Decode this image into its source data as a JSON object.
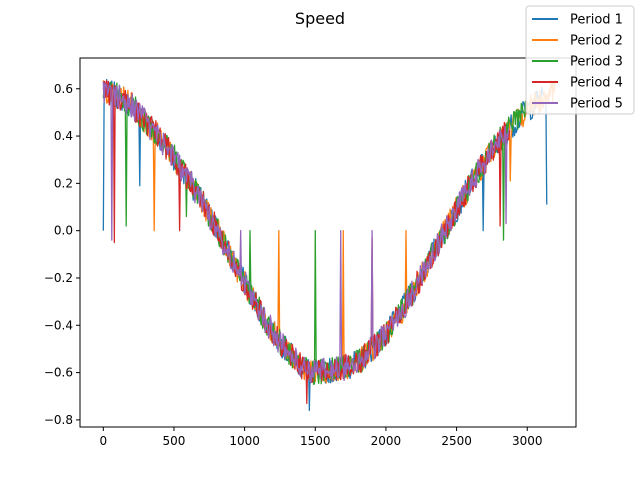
{
  "chart_data": {
    "type": "line",
    "title": "Speed",
    "xlabel": "",
    "ylabel": "",
    "xlim": [
      -165,
      3345
    ],
    "ylim": [
      -0.83,
      0.73
    ],
    "x_ticks": [
      0,
      500,
      1000,
      1500,
      2000,
      2500,
      3000
    ],
    "y_ticks": [
      -0.8,
      -0.6,
      -0.4,
      -0.2,
      0.0,
      0.2,
      0.4,
      0.6
    ],
    "x_tick_labels": [
      "0",
      "500",
      "1000",
      "1500",
      "2000",
      "2500",
      "3000"
    ],
    "y_tick_labels": [
      "−0.8",
      "−0.6",
      "−0.4",
      "−0.2",
      "0.0",
      "0.2",
      "0.4",
      "0.6"
    ],
    "grid": false,
    "legend_position": "top-right",
    "curve": {
      "x": [
        0,
        100,
        200,
        300,
        400,
        500,
        600,
        700,
        800,
        900,
        1000,
        1100,
        1200,
        1300,
        1400,
        1500,
        1600,
        1700,
        1800,
        1900,
        2000,
        2100,
        2200,
        2300,
        2400,
        2500,
        2600,
        2700,
        2800,
        2900,
        3000,
        3100,
        3200
      ],
      "y": [
        0.59,
        0.57,
        0.53,
        0.46,
        0.39,
        0.31,
        0.22,
        0.12,
        0.01,
        -0.11,
        -0.22,
        -0.33,
        -0.43,
        -0.51,
        -0.57,
        -0.6,
        -0.59,
        -0.58,
        -0.56,
        -0.5,
        -0.44,
        -0.35,
        -0.25,
        -0.13,
        -0.02,
        0.09,
        0.2,
        0.29,
        0.38,
        0.45,
        0.51,
        0.56,
        0.6
      ],
      "noise_amplitude": 0.055
    },
    "series": [
      {
        "name": "Period 1",
        "color": "#1f77b4",
        "x_end": 3140,
        "spikes": [
          [
            0,
            0.0
          ],
          [
            260,
            0.19
          ],
          [
            1460,
            -0.76
          ],
          [
            2690,
            0.0
          ],
          [
            3140,
            0.11
          ]
        ]
      },
      {
        "name": "Period 2",
        "color": "#ff7f0e",
        "x_end": 3200,
        "spikes": [
          [
            360,
            0.0
          ],
          [
            1240,
            0.0
          ],
          [
            1700,
            0.0
          ],
          [
            2140,
            0.0
          ],
          [
            2880,
            0.21
          ],
          [
            2570,
            0.11
          ]
        ]
      },
      {
        "name": "Period 3",
        "color": "#2ca02c",
        "x_end": 2990,
        "spikes": [
          [
            160,
            0.02
          ],
          [
            590,
            0.06
          ],
          [
            1040,
            0.0
          ],
          [
            1500,
            0.0
          ],
          [
            2830,
            -0.04
          ]
        ]
      },
      {
        "name": "Period 4",
        "color": "#d62728",
        "x_end": 2880,
        "spikes": [
          [
            80,
            -0.05
          ],
          [
            540,
            0.0
          ],
          [
            1440,
            -0.73
          ],
          [
            1900,
            -0.03
          ],
          [
            2810,
            0.02
          ]
        ]
      },
      {
        "name": "Period 5",
        "color": "#9467bd",
        "x_end": 2870,
        "spikes": [
          [
            60,
            -0.04
          ],
          [
            970,
            0.0
          ],
          [
            1680,
            0.0
          ],
          [
            1900,
            0.0
          ],
          [
            2850,
            0.03
          ]
        ]
      }
    ]
  }
}
